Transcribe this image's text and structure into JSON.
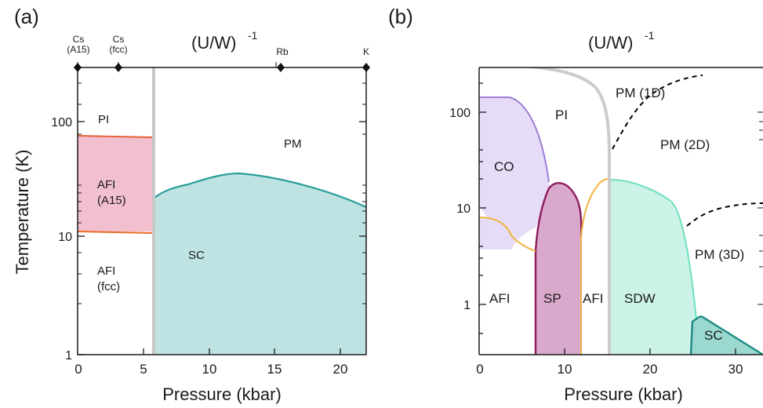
{
  "chart_data": [
    {
      "panel_label": "(a)",
      "type": "phase-diagram",
      "xlabel": "Pressure (kbar)",
      "ylabel": "Temperature (K)",
      "top_axis_label": "(U/W)",
      "top_axis_exponent": "-1",
      "xlim": [
        0,
        22
      ],
      "ylim": [
        1,
        300
      ],
      "yscale": "log",
      "x_ticks": [
        "0",
        "5",
        "10",
        "15",
        "20"
      ],
      "y_ticks": [
        "1",
        "10",
        "100"
      ],
      "top_markers": [
        {
          "x": 0,
          "label": "Cs",
          "sublabel": "(A15)"
        },
        {
          "x": 3.1,
          "label": "Cs",
          "sublabel": "(fcc)"
        },
        {
          "x": 15.5,
          "label": "Rb",
          "sublabel": ""
        },
        {
          "x": 22,
          "label": "K",
          "sublabel": ""
        }
      ],
      "regions": [
        {
          "label": "PI",
          "x": 2,
          "y": 110
        },
        {
          "label": "PM",
          "x": 14.8,
          "y": 70
        },
        {
          "label": "AFI",
          "sublabel": "(A15)",
          "x": 2.8,
          "y": 24
        },
        {
          "label": "SC",
          "x": 9.4,
          "y": 7.5
        },
        {
          "label": "AFI",
          "sublabel": "(fcc)",
          "x": 2.8,
          "y": 3.4
        }
      ],
      "series": [
        {
          "color": "#e8603a",
          "fill": "#f2bfcf",
          "points": [
            [
              0,
              47
            ],
            [
              5.7,
              46
            ]
          ]
        },
        {
          "color": "#ea6a24",
          "fill": "",
          "points": [
            [
              0,
              11.3
            ],
            [
              5.7,
              11.0
            ]
          ]
        },
        {
          "color": "#2a9d9a",
          "fill": "#bfe3e3",
          "points": [
            [
              5.7,
              21
            ],
            [
              6.5,
              27
            ],
            [
              8,
              31
            ],
            [
              11,
              34.5
            ],
            [
              14,
              32
            ],
            [
              18,
              26
            ],
            [
              22,
              17.5
            ]
          ]
        },
        {
          "color": "#c8c8c8",
          "fill": "",
          "points": [
            [
              5.75,
              1
            ],
            [
              5.75,
              300
            ]
          ]
        }
      ]
    },
    {
      "panel_label": "(b)",
      "type": "phase-diagram",
      "xlabel": "Pressure (kbar)",
      "ylabel": "",
      "top_axis_label": "(U/W)",
      "top_axis_exponent": "-1",
      "xlim": [
        0,
        33
      ],
      "ylim": [
        0.3,
        300
      ],
      "yscale": "log",
      "x_ticks": [
        "0",
        "10",
        "20",
        "30"
      ],
      "y_ticks": [
        "1",
        "10",
        "100"
      ],
      "regions": [
        {
          "label": "PI",
          "x": 9.5,
          "y": 100
        },
        {
          "label": "PM (1D)",
          "x": 19.5,
          "y": 200
        },
        {
          "label": "PM (2D)",
          "x": 24.5,
          "y": 52
        },
        {
          "label": "CO",
          "x": 3.2,
          "y": 40
        },
        {
          "label": "PM (3D)",
          "x": 28.5,
          "y": 2.3
        },
        {
          "label": "AFI",
          "x": 2.5,
          "y": 0.86
        },
        {
          "label": "SP",
          "x": 8.4,
          "y": 0.86
        },
        {
          "label": "AFI",
          "x": 13.3,
          "y": 0.86
        },
        {
          "label": "SDW",
          "x": 19.2,
          "y": 0.86
        },
        {
          "label": "SC",
          "x": 28.2,
          "y": 0.44
        }
      ],
      "series": [
        {
          "color": "#9f7fd6",
          "fill": "#e6dcf7",
          "points": [
            [
              0,
              140
            ],
            [
              3,
              138
            ],
            [
              5.5,
              110
            ],
            [
              7.2,
              55
            ],
            [
              8,
              20
            ]
          ]
        },
        {
          "color": "#8c1c5c",
          "fill": "#d9a9cc",
          "points": [
            [
              6.5,
              0.3
            ],
            [
              6.8,
              4
            ],
            [
              7.4,
              14
            ],
            [
              8.5,
              17.5
            ],
            [
              10,
              16
            ],
            [
              11.5,
              12
            ],
            [
              11.8,
              4.5
            ]
          ]
        },
        {
          "color": "#f0b33c",
          "fill": "",
          "points": [
            [
              0,
              7.9
            ],
            [
              3,
              7.2
            ],
            [
              5.5,
              5
            ],
            [
              6.6,
              3.7
            ]
          ]
        },
        {
          "color": "#f0b33c",
          "fill": "",
          "points": [
            [
              11.7,
              0.3
            ],
            [
              11.8,
              4.5
            ],
            [
              12.2,
              10
            ],
            [
              13.5,
              17
            ],
            [
              14.8,
              19.5
            ]
          ]
        },
        {
          "color": "#6ee0c0",
          "fill": "#cdf2e7",
          "points": [
            [
              15.1,
              19.5
            ],
            [
              17,
              19
            ],
            [
              20,
              16
            ],
            [
              22.5,
              10
            ],
            [
              24.5,
              3.5
            ],
            [
              25.5,
              1.15
            ]
          ]
        },
        {
          "color": "#1e8a84",
          "fill": "#9bd8cf",
          "points": [
            [
              25.3,
              0.3
            ],
            [
              25.4,
              1.15
            ],
            [
              33,
              0.3
            ]
          ]
        },
        {
          "color": "#cccccc",
          "fill": "",
          "points": [
            [
              6,
              300
            ],
            [
              12,
              260
            ],
            [
              14.5,
              120
            ],
            [
              15,
              0.3
            ]
          ]
        },
        {
          "color": "#000000",
          "dashed": true,
          "points": [
            [
              15.3,
              28
            ],
            [
              17,
              60
            ],
            [
              21,
              150
            ],
            [
              25,
              230
            ]
          ]
        },
        {
          "color": "#000000",
          "dashed": true,
          "points": [
            [
              24.8,
              4.3
            ],
            [
              27.5,
              8
            ],
            [
              30,
              10.5
            ],
            [
              33,
              11
            ]
          ]
        }
      ]
    }
  ]
}
